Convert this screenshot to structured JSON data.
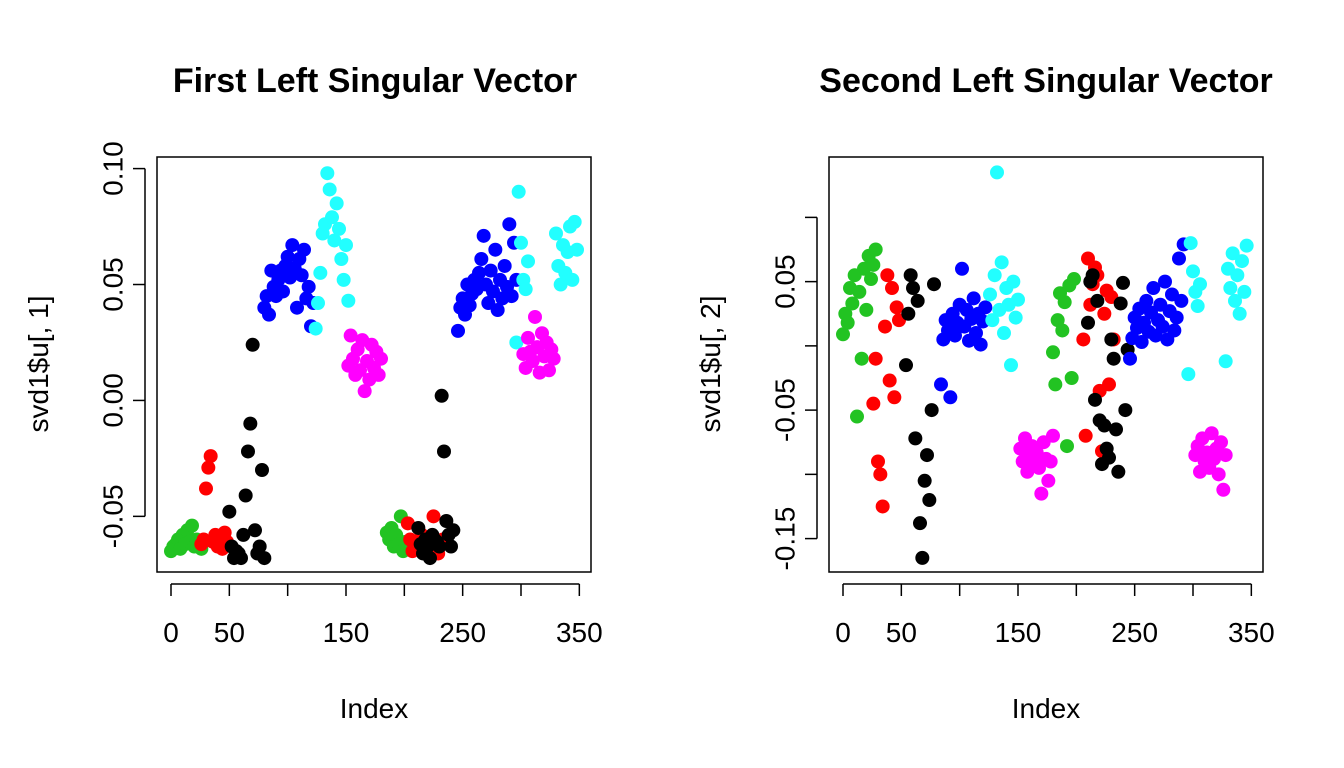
{
  "colors": {
    "green": "#22c322",
    "red": "#ff0000",
    "black": "#000000",
    "blue": "#0000ff",
    "cyan": "#22ffff",
    "magenta": "#ff00ff"
  },
  "chart_data": [
    {
      "type": "scatter",
      "title": "First Left Singular Vector",
      "xlabel": "Index",
      "ylabel": "svd1$u[, 1]",
      "xlim": [
        -12,
        360
      ],
      "ylim": [
        -0.074,
        0.105
      ],
      "xticks": [
        0,
        50,
        150,
        250,
        350
      ],
      "xticks_unlabeled": [
        100,
        200,
        300
      ],
      "yticks": [
        "0.10",
        "0.05",
        "0.00",
        "-0.05"
      ],
      "yticks_values": [
        0.1,
        0.05,
        0.0,
        -0.05
      ],
      "series": [
        {
          "color_key": "green",
          "x": [
            0,
            2,
            4,
            6,
            8,
            10,
            12,
            14,
            16,
            18,
            20,
            22,
            24,
            26,
            28,
            185,
            187,
            189,
            191,
            193,
            195,
            197,
            199,
            201
          ],
          "y": [
            -0.065,
            -0.063,
            -0.062,
            -0.06,
            -0.064,
            -0.058,
            -0.062,
            -0.056,
            -0.061,
            -0.054,
            -0.063,
            -0.06,
            -0.062,
            -0.064,
            -0.061,
            -0.057,
            -0.06,
            -0.055,
            -0.063,
            -0.058,
            -0.062,
            -0.05,
            -0.065,
            -0.061
          ]
        },
        {
          "color_key": "red",
          "x": [
            26,
            28,
            30,
            32,
            34,
            36,
            38,
            40,
            42,
            44,
            46,
            48,
            203,
            205,
            207,
            209,
            211,
            213,
            215,
            217,
            219,
            221,
            223,
            225,
            227,
            229,
            231,
            233
          ],
          "y": [
            -0.062,
            -0.06,
            -0.038,
            -0.029,
            -0.024,
            -0.061,
            -0.058,
            -0.063,
            -0.06,
            -0.064,
            -0.057,
            -0.061,
            -0.053,
            -0.06,
            -0.065,
            -0.062,
            -0.063,
            -0.06,
            -0.058,
            -0.063,
            -0.066,
            -0.062,
            -0.061,
            -0.05,
            -0.064,
            -0.066,
            -0.062,
            -0.06
          ]
        },
        {
          "color_key": "black",
          "x": [
            50,
            52,
            54,
            56,
            58,
            60,
            62,
            64,
            66,
            68,
            70,
            72,
            74,
            76,
            78,
            80,
            212,
            214,
            216,
            218,
            220,
            222,
            224,
            226,
            228,
            230,
            232,
            234,
            236,
            238,
            240,
            242
          ],
          "y": [
            -0.048,
            -0.063,
            -0.068,
            -0.065,
            -0.066,
            -0.068,
            -0.058,
            -0.041,
            -0.022,
            -0.01,
            0.024,
            -0.056,
            -0.066,
            -0.063,
            -0.03,
            -0.068,
            -0.055,
            -0.062,
            -0.066,
            -0.06,
            -0.063,
            -0.068,
            -0.058,
            -0.06,
            -0.061,
            -0.063,
            0.002,
            -0.022,
            -0.052,
            -0.058,
            -0.063,
            -0.056
          ]
        },
        {
          "color_key": "blue",
          "x": [
            80,
            82,
            84,
            86,
            88,
            90,
            92,
            94,
            96,
            98,
            100,
            102,
            104,
            106,
            108,
            110,
            112,
            114,
            116,
            118,
            120,
            122,
            246,
            248,
            250,
            252,
            254,
            256,
            258,
            260,
            262,
            264,
            266,
            268,
            270,
            272,
            274,
            276,
            278,
            280,
            282,
            284,
            286,
            288,
            290,
            292,
            294,
            296
          ],
          "y": [
            0.04,
            0.045,
            0.037,
            0.056,
            0.049,
            0.045,
            0.052,
            0.056,
            0.047,
            0.058,
            0.062,
            0.053,
            0.067,
            0.057,
            0.04,
            0.061,
            0.054,
            0.065,
            0.044,
            0.049,
            0.032,
            0.042,
            0.03,
            0.04,
            0.044,
            0.037,
            0.05,
            0.041,
            0.046,
            0.052,
            0.048,
            0.055,
            0.061,
            0.071,
            0.05,
            0.042,
            0.056,
            0.047,
            0.065,
            0.039,
            0.052,
            0.044,
            0.058,
            0.049,
            0.076,
            0.045,
            0.068,
            0.052
          ]
        },
        {
          "color_key": "cyan",
          "x": [
            124,
            126,
            128,
            130,
            132,
            134,
            136,
            138,
            140,
            142,
            144,
            146,
            148,
            150,
            152,
            296,
            298,
            300,
            302,
            304,
            306,
            330,
            332,
            334,
            336,
            338,
            340,
            342,
            344,
            346,
            348
          ],
          "y": [
            0.031,
            0.042,
            0.055,
            0.072,
            0.076,
            0.098,
            0.091,
            0.079,
            0.069,
            0.085,
            0.074,
            0.061,
            0.052,
            0.067,
            0.043,
            0.025,
            0.09,
            0.068,
            0.052,
            0.048,
            0.06,
            0.072,
            0.058,
            0.05,
            0.067,
            0.055,
            0.064,
            0.075,
            0.052,
            0.077,
            0.065
          ]
        },
        {
          "color_key": "magenta",
          "x": [
            152,
            154,
            156,
            158,
            160,
            162,
            164,
            166,
            168,
            170,
            172,
            174,
            176,
            178,
            180,
            302,
            304,
            306,
            308,
            310,
            312,
            314,
            316,
            318,
            320,
            322,
            324,
            326,
            328
          ],
          "y": [
            0.015,
            0.028,
            0.018,
            0.011,
            0.022,
            0.013,
            0.026,
            0.004,
            0.017,
            0.009,
            0.024,
            0.014,
            0.021,
            0.011,
            0.018,
            0.02,
            0.014,
            0.027,
            0.021,
            0.017,
            0.036,
            0.023,
            0.012,
            0.029,
            0.019,
            0.025,
            0.013,
            0.022,
            0.018
          ]
        }
      ]
    },
    {
      "type": "scatter",
      "title": "Second Left Singular Vector",
      "xlabel": "Index",
      "ylabel": "svd1$u[, 2]",
      "xlim": [
        -12,
        360
      ],
      "ylim": [
        -0.176,
        0.147
      ],
      "xticks": [
        0,
        50,
        150,
        250,
        350
      ],
      "xticks_unlabeled": [
        100,
        200,
        300
      ],
      "yticks": [
        "0.05",
        "-0.05",
        "-0.15"
      ],
      "yticks_values": [
        0.05,
        -0.05,
        -0.15
      ],
      "yticks_unlabeled": [
        0.1,
        0.0,
        -0.1
      ],
      "series": [
        {
          "color_key": "green",
          "x": [
            0,
            2,
            4,
            6,
            8,
            10,
            12,
            14,
            16,
            18,
            20,
            22,
            24,
            26,
            28,
            180,
            182,
            184,
            186,
            188,
            190,
            192,
            194,
            196,
            198
          ],
          "y": [
            0.009,
            0.025,
            0.018,
            0.045,
            0.033,
            0.055,
            -0.055,
            0.042,
            -0.01,
            0.06,
            0.028,
            0.07,
            0.052,
            0.063,
            0.075,
            -0.005,
            -0.03,
            0.02,
            0.041,
            0.012,
            0.034,
            -0.078,
            0.047,
            -0.025,
            0.052
          ]
        },
        {
          "color_key": "red",
          "x": [
            26,
            28,
            30,
            32,
            34,
            36,
            38,
            40,
            42,
            44,
            46,
            48,
            206,
            208,
            210,
            212,
            214,
            216,
            218,
            220,
            222,
            224,
            226,
            228,
            230,
            232
          ],
          "y": [
            -0.045,
            -0.01,
            -0.09,
            -0.1,
            -0.125,
            0.015,
            0.055,
            -0.027,
            0.045,
            -0.04,
            0.03,
            0.02,
            0.005,
            -0.07,
            0.068,
            0.032,
            0.048,
            0.061,
            0.055,
            -0.035,
            -0.082,
            0.025,
            0.043,
            -0.03,
            0.038,
            0.005
          ]
        },
        {
          "color_key": "black",
          "x": [
            54,
            56,
            58,
            60,
            62,
            64,
            66,
            68,
            70,
            72,
            74,
            76,
            78,
            210,
            212,
            214,
            216,
            218,
            220,
            222,
            224,
            226,
            228,
            230,
            232,
            234,
            236,
            238,
            240,
            242,
            244
          ],
          "y": [
            -0.015,
            0.025,
            0.055,
            0.045,
            -0.072,
            0.035,
            -0.138,
            -0.165,
            -0.105,
            -0.085,
            -0.12,
            -0.05,
            0.048,
            0.018,
            0.05,
            0.055,
            -0.042,
            0.035,
            -0.058,
            -0.092,
            -0.062,
            -0.08,
            -0.087,
            0.005,
            -0.01,
            -0.065,
            -0.098,
            0.033,
            0.049,
            -0.05,
            -0.003
          ]
        },
        {
          "color_key": "blue",
          "x": [
            84,
            86,
            88,
            90,
            92,
            94,
            96,
            98,
            100,
            102,
            104,
            106,
            108,
            110,
            112,
            114,
            116,
            118,
            120,
            122,
            246,
            248,
            250,
            252,
            254,
            256,
            258,
            260,
            262,
            264,
            266,
            268,
            270,
            272,
            274,
            276,
            278,
            280,
            282,
            284,
            286,
            288,
            290,
            292
          ],
          "y": [
            -0.03,
            0.005,
            0.02,
            0.012,
            -0.04,
            0.025,
            0.008,
            0.018,
            0.032,
            0.06,
            0.015,
            0.028,
            0.004,
            0.021,
            0.037,
            0.01,
            0.025,
            0.001,
            0.019,
            0.03,
            -0.01,
            0.006,
            0.022,
            0.014,
            0.029,
            0.003,
            0.018,
            0.035,
            0.011,
            0.026,
            0.045,
            0.008,
            0.02,
            0.032,
            0.015,
            0.05,
            0.005,
            0.027,
            0.04,
            0.012,
            0.022,
            0.068,
            0.035,
            0.079
          ]
        },
        {
          "color_key": "cyan",
          "x": [
            126,
            128,
            130,
            132,
            134,
            136,
            138,
            140,
            142,
            144,
            146,
            148,
            150,
            296,
            298,
            300,
            302,
            304,
            306,
            328,
            330,
            332,
            334,
            336,
            338,
            340,
            342,
            344,
            346
          ],
          "y": [
            0.04,
            0.02,
            0.055,
            0.135,
            0.028,
            0.065,
            0.01,
            0.045,
            0.032,
            -0.015,
            0.05,
            0.022,
            0.036,
            -0.022,
            0.08,
            0.058,
            0.042,
            0.031,
            0.048,
            -0.012,
            0.06,
            0.045,
            0.072,
            0.035,
            0.055,
            0.025,
            0.066,
            0.042,
            0.078
          ]
        },
        {
          "color_key": "magenta",
          "x": [
            152,
            154,
            156,
            158,
            160,
            162,
            164,
            166,
            168,
            170,
            172,
            174,
            176,
            178,
            180,
            302,
            304,
            306,
            308,
            310,
            312,
            314,
            316,
            318,
            320,
            322,
            324,
            326,
            328
          ],
          "y": [
            -0.08,
            -0.09,
            -0.072,
            -0.098,
            -0.085,
            -0.078,
            -0.092,
            -0.083,
            -0.095,
            -0.115,
            -0.075,
            -0.088,
            -0.105,
            -0.09,
            -0.07,
            -0.085,
            -0.078,
            -0.098,
            -0.072,
            -0.09,
            -0.083,
            -0.095,
            -0.068,
            -0.088,
            -0.08,
            -0.1,
            -0.075,
            -0.112,
            -0.085
          ]
        }
      ]
    }
  ]
}
